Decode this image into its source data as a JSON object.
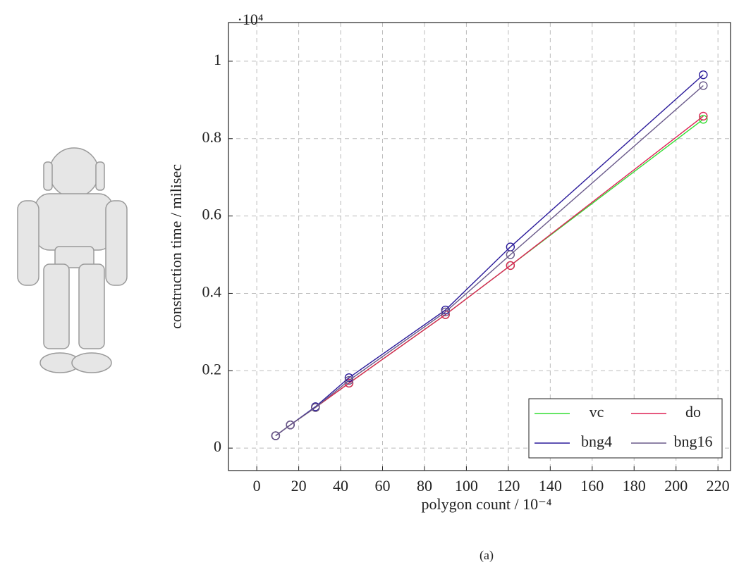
{
  "chart_data": {
    "type": "line",
    "ylabel": "construction time / milisec",
    "xlabel": "polygon count / 10⁻⁴",
    "y_scale_label": "·10⁴",
    "caption": "(a)",
    "x": [
      9,
      16,
      28,
      44,
      90,
      121,
      213
    ],
    "series": [
      {
        "name": "vc",
        "color": "#33dd33",
        "values": [
          0.032,
          0.06,
          0.105,
          0.168,
          0.345,
          0.472,
          0.85
        ]
      },
      {
        "name": "do",
        "color": "#dd2255",
        "values": [
          0.032,
          0.06,
          0.105,
          0.168,
          0.345,
          0.472,
          0.858
        ]
      },
      {
        "name": "bng4",
        "color": "#2a1a9a",
        "values": [
          0.032,
          0.06,
          0.107,
          0.182,
          0.357,
          0.52,
          0.965
        ]
      },
      {
        "name": "bng16",
        "color": "#6a5a8a",
        "values": [
          0.032,
          0.06,
          0.105,
          0.175,
          0.352,
          0.5,
          0.937
        ]
      }
    ],
    "xlim": [
      -13.5,
      226
    ],
    "ylim": [
      -0.058,
      1.1
    ],
    "xticks": [
      0,
      20,
      40,
      60,
      80,
      100,
      120,
      140,
      160,
      180,
      200,
      220
    ],
    "yticks": [
      0,
      0.2,
      0.4,
      0.6,
      0.8,
      1
    ],
    "grid": true,
    "legend": "lower right",
    "markers": "circle"
  }
}
